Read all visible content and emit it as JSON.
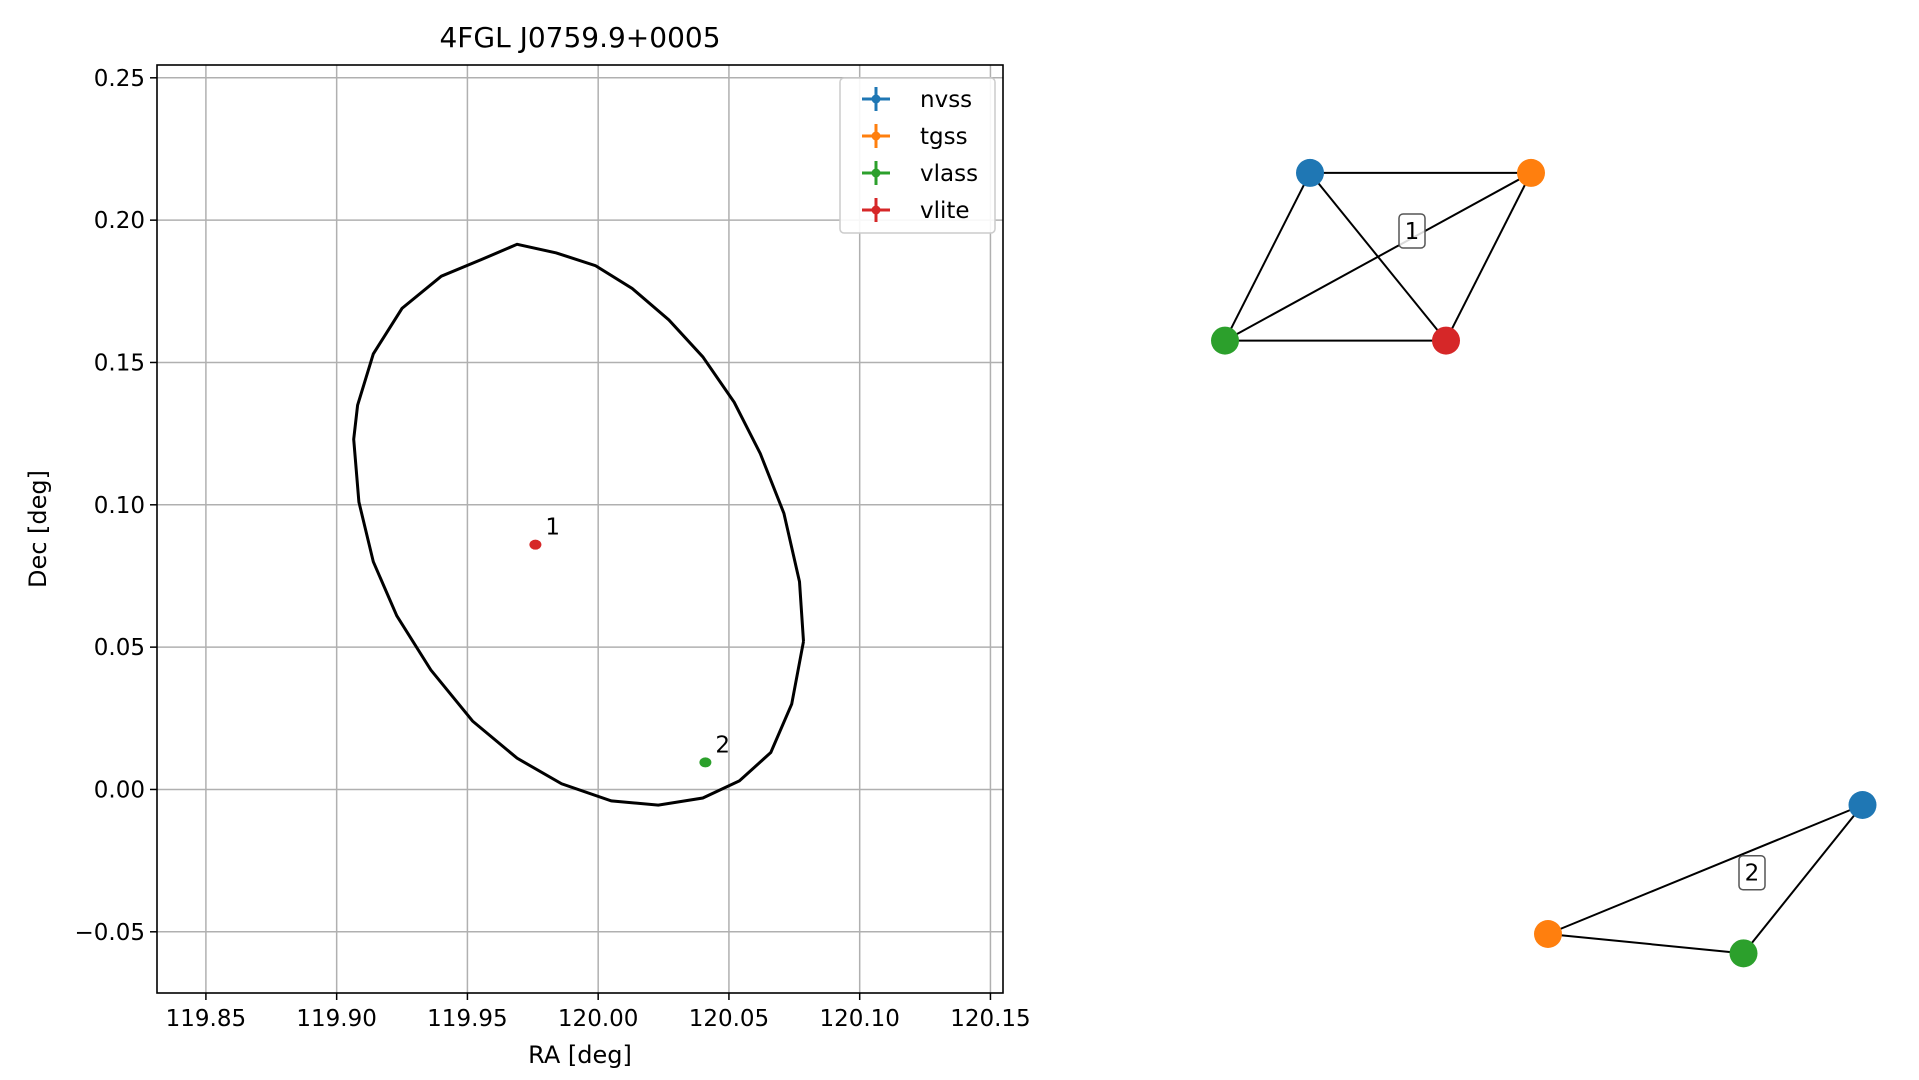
{
  "chart_data": [
    {
      "type": "scatter",
      "title": "4FGL J0759.9+0005",
      "xlabel": "RA [deg]",
      "ylabel": "Dec [deg]",
      "xlim": [
        119.8313,
        120.1548
      ],
      "ylim": [
        -0.0715,
        0.2545
      ],
      "x_ticks": [
        119.85,
        119.9,
        119.95,
        120.0,
        120.05,
        120.1,
        120.15
      ],
      "x_tick_labels": [
        "119.85",
        "119.90",
        "119.95",
        "120.00",
        "120.05",
        "120.10",
        "120.15"
      ],
      "y_ticks": [
        -0.05,
        0.0,
        0.05,
        0.1,
        0.15,
        0.2,
        0.25
      ],
      "y_tick_labels": [
        "−0.05",
        "0.00",
        "0.05",
        "0.10",
        "0.15",
        "0.20",
        "0.25"
      ],
      "grid": true,
      "legend_position": "top-right",
      "series": [
        {
          "name": "nvss",
          "color": "#1f77b4",
          "points": []
        },
        {
          "name": "tgss",
          "color": "#ff7f0e",
          "points": []
        },
        {
          "name": "vlass",
          "color": "#2ca02c",
          "points": [
            {
              "x": 120.041,
              "y": 0.0095,
              "label": "2"
            }
          ]
        },
        {
          "name": "vlite",
          "color": "#d62728",
          "points": [
            {
              "x": 119.976,
              "y": 0.086,
              "label": "1"
            }
          ]
        }
      ],
      "ellipse": {
        "color": "#000000",
        "points": [
          [
            120.0785,
            0.052
          ],
          [
            120.077,
            0.073
          ],
          [
            120.071,
            0.097
          ],
          [
            120.062,
            0.118
          ],
          [
            120.052,
            0.136
          ],
          [
            120.04,
            0.152
          ],
          [
            120.027,
            0.165
          ],
          [
            120.013,
            0.176
          ],
          [
            119.999,
            0.184
          ],
          [
            119.984,
            0.1885
          ],
          [
            119.969,
            0.1915
          ],
          [
            119.9555,
            0.1862
          ],
          [
            119.94,
            0.1803
          ],
          [
            119.925,
            0.169
          ],
          [
            119.914,
            0.153
          ],
          [
            119.908,
            0.135
          ],
          [
            119.9065,
            0.123
          ],
          [
            119.9085,
            0.101
          ],
          [
            119.914,
            0.08
          ],
          [
            119.923,
            0.061
          ],
          [
            119.936,
            0.042
          ],
          [
            119.952,
            0.024
          ],
          [
            119.969,
            0.011
          ],
          [
            119.986,
            0.002
          ],
          [
            120.005,
            -0.004
          ],
          [
            120.023,
            -0.0055
          ],
          [
            120.04,
            -0.003
          ],
          [
            120.054,
            0.003
          ],
          [
            120.066,
            0.013
          ],
          [
            120.074,
            0.03
          ],
          [
            120.0785,
            0.052
          ]
        ]
      }
    },
    {
      "type": "network",
      "title": "",
      "nodes": [
        {
          "id": "c1-nvss",
          "x": 0.36,
          "y": 0.98,
          "color": "#1f77b4"
        },
        {
          "id": "c1-tgss",
          "x": 0.62,
          "y": 0.98,
          "color": "#ff7f0e"
        },
        {
          "id": "c1-vlass",
          "x": 0.26,
          "y": 0.72,
          "color": "#2ca02c"
        },
        {
          "id": "c1-vlite",
          "x": 0.52,
          "y": 0.72,
          "color": "#d62728"
        },
        {
          "id": "c2-nvss",
          "x": 1.01,
          "y": 0.0,
          "color": "#1f77b4"
        },
        {
          "id": "c2-tgss",
          "x": 0.64,
          "y": -0.2,
          "color": "#ff7f0e"
        },
        {
          "id": "c2-vlass",
          "x": 0.87,
          "y": -0.23,
          "color": "#2ca02c"
        }
      ],
      "edges": [
        [
          "c1-nvss",
          "c1-tgss"
        ],
        [
          "c1-nvss",
          "c1-vlass"
        ],
        [
          "c1-nvss",
          "c1-vlite"
        ],
        [
          "c1-tgss",
          "c1-vlass"
        ],
        [
          "c1-tgss",
          "c1-vlite"
        ],
        [
          "c1-vlass",
          "c1-vlite"
        ],
        [
          "c2-nvss",
          "c2-tgss"
        ],
        [
          "c2-nvss",
          "c2-vlass"
        ],
        [
          "c2-tgss",
          "c2-vlass"
        ]
      ],
      "cluster_labels": [
        {
          "text": "1",
          "x": 0.48,
          "y": 0.89
        },
        {
          "text": "2",
          "x": 0.88,
          "y": -0.105
        }
      ]
    }
  ]
}
